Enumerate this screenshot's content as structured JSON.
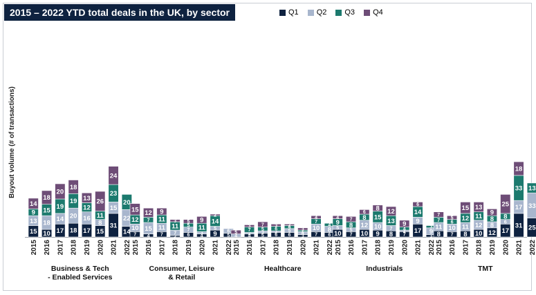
{
  "chart_data": {
    "type": "bar",
    "stacked": true,
    "title": "2015 – 2022 YTD total deals in the UK, by sector",
    "ylabel": "Buyout volume (# of transactions)",
    "years": [
      "2015",
      "2016",
      "2017",
      "2018",
      "2019",
      "2020",
      "2021",
      "2022"
    ],
    "legend_position": "top",
    "grid": false,
    "series": [
      {
        "name": "Q1",
        "color": "#0e2240"
      },
      {
        "name": "Q2",
        "color": "#a8b6cd"
      },
      {
        "name": "Q3",
        "color": "#1c7a6e"
      },
      {
        "name": "Q4",
        "color": "#6e4d77"
      }
    ],
    "groups": [
      {
        "label_lines": [
          "Business & Tech",
          "- Enabled Services"
        ],
        "values": [
          [
            15,
            13,
            9,
            14
          ],
          [
            10,
            18,
            15,
            18
          ],
          [
            17,
            14,
            19,
            20
          ],
          [
            18,
            20,
            19,
            18
          ],
          [
            17,
            16,
            12,
            13
          ],
          [
            15,
            8,
            11,
            26
          ],
          [
            31,
            15,
            23,
            24
          ],
          [
            14,
            22,
            20,
            null
          ]
        ]
      },
      {
        "label_lines": [
          "Consumer, Leisure",
          "& Retail"
        ],
        "values": [
          [
            7,
            10,
            12,
            15
          ],
          [
            4,
            15,
            7,
            12
          ],
          [
            7,
            11,
            11,
            9
          ],
          [
            2,
            7,
            11,
            3
          ],
          [
            6,
            7,
            5,
            5
          ],
          [
            4,
            3,
            11,
            9
          ],
          [
            9,
            5,
            14,
            2
          ],
          [
            5,
            6,
            null,
            null
          ]
        ]
      },
      {
        "label_lines": [
          "Healthcare"
        ],
        "values": [
          [
            null,
            4,
            null,
            5
          ],
          [
            4,
            2,
            7,
            3
          ],
          [
            5,
            3,
            5,
            7
          ],
          [
            6,
            2,
            6,
            3
          ],
          [
            6,
            5,
            4,
            2
          ],
          [
            3,
            4,
            2,
            3
          ],
          [
            7,
            10,
            7,
            4
          ],
          [
            6,
            8,
            4,
            null
          ]
        ]
      },
      {
        "label_lines": [
          "Industrials"
        ],
        "values": [
          [
            10,
            5,
            9,
            4
          ],
          [
            7,
            5,
            8,
            7
          ],
          [
            10,
            12,
            8,
            6
          ],
          [
            9,
            10,
            15,
            8
          ],
          [
            8,
            7,
            13,
            12
          ],
          [
            7,
            2,
            4,
            9
          ],
          [
            17,
            9,
            14,
            6
          ],
          [
            3,
            9,
            3,
            null
          ]
        ]
      },
      {
        "label_lines": [
          "TMT"
        ],
        "values": [
          [
            8,
            11,
            7,
            7
          ],
          [
            7,
            10,
            6,
            5
          ],
          [
            8,
            11,
            12,
            15
          ],
          [
            10,
            12,
            11,
            13
          ],
          [
            12,
            8,
            8,
            9
          ],
          [
            17,
            6,
            8,
            25
          ],
          [
            31,
            17,
            33,
            18
          ],
          [
            25,
            33,
            13,
            null
          ]
        ]
      }
    ]
  }
}
